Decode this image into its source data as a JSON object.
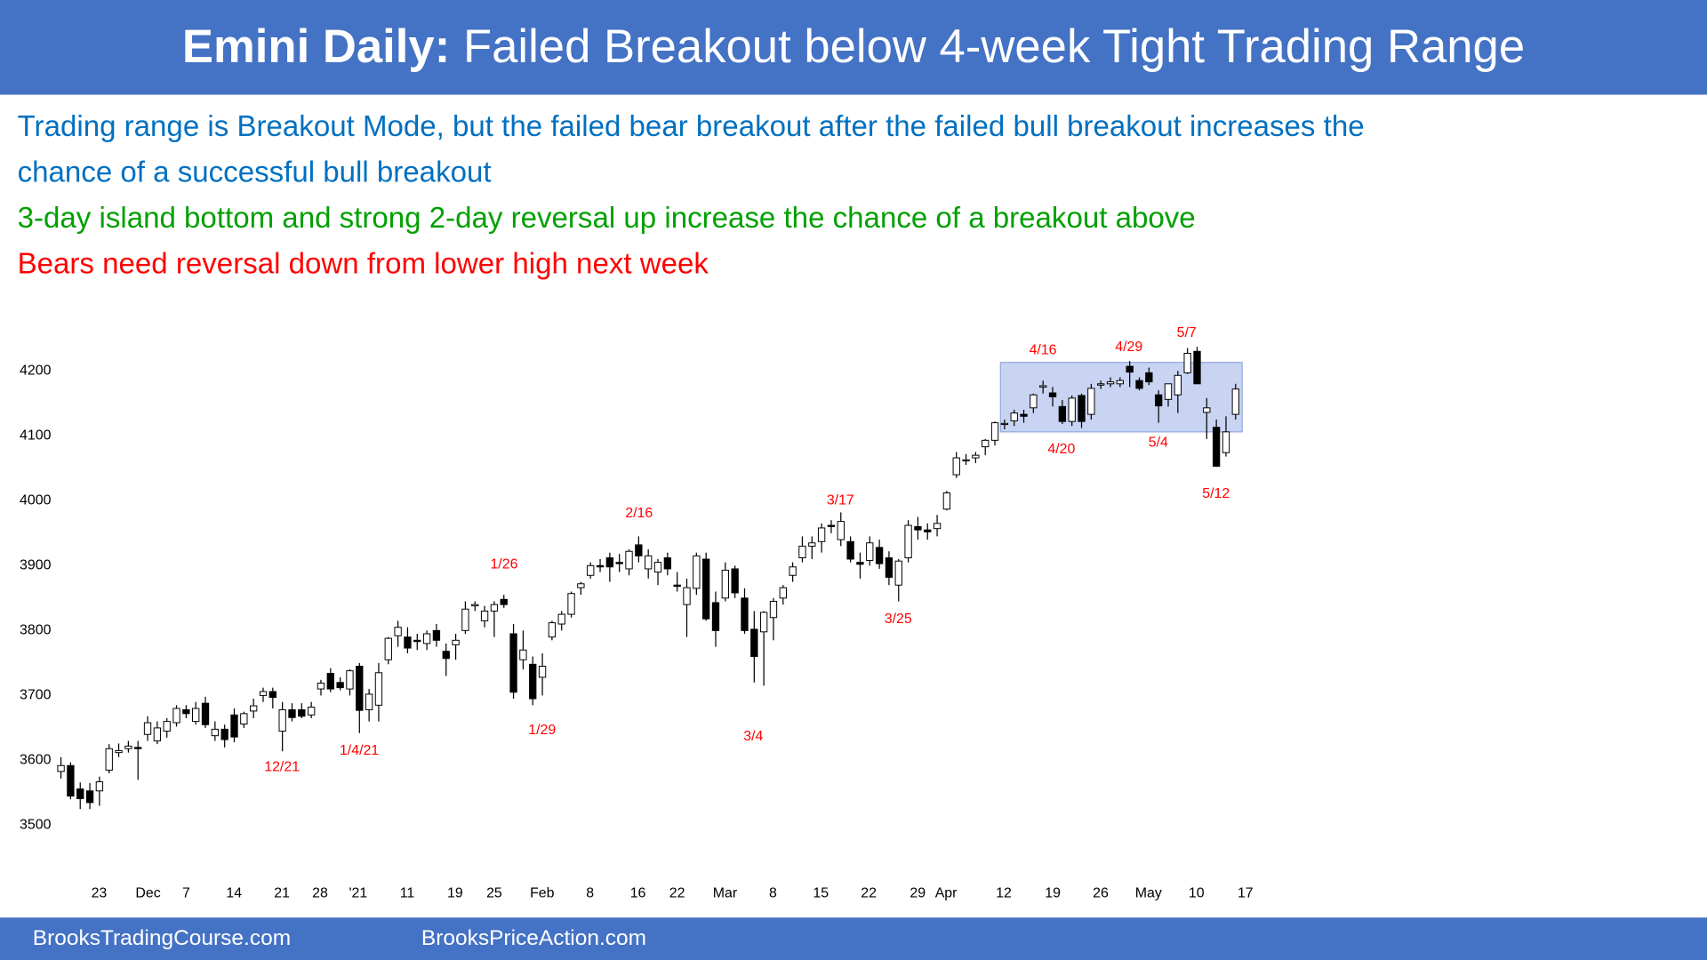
{
  "header": {
    "lead": "Emini Daily:",
    "title": "Failed Breakout below 4-week Tight Trading Range"
  },
  "notes": [
    {
      "text": "Trading range is Breakout Mode, but the failed bear breakout after the failed bull breakout increases the",
      "color": "#0070c0"
    },
    {
      "text": "chance of a successful bull breakout",
      "color": "#0070c0"
    },
    {
      "text": "3-day island bottom and strong 2-day reversal up increase the chance of a breakout above",
      "color": "#00a000"
    },
    {
      "text": "Bears need reversal down from lower high next week",
      "color": "#ff0000"
    }
  ],
  "chart_data": {
    "type": "candlestick",
    "open": [
      3583,
      3592,
      3556,
      3553,
      3553,
      3585,
      3612,
      3618,
      3620,
      3640,
      3630,
      3645,
      3658,
      3678,
      3660,
      3688,
      3638,
      3648,
      3670,
      3656,
      3676,
      3700,
      3706,
      3645,
      3678,
      3678,
      3670,
      3710,
      3734,
      3720,
      3710,
      3745,
      3678,
      3685,
      3755,
      3792,
      3790,
      3785,
      3780,
      3800,
      3768,
      3778,
      3800,
      3838,
      3815,
      3830,
      3848,
      3795,
      3755,
      3748,
      3728,
      3790,
      3810,
      3825,
      3866,
      3885,
      3900,
      3912,
      3905,
      3895,
      3932,
      3895,
      3890,
      3912,
      3870,
      3840,
      3865,
      3910,
      3843,
      3850,
      3895,
      3850,
      3802,
      3798,
      3820,
      3850,
      3885,
      3912,
      3930,
      3937,
      3962,
      3940,
      3937,
      3905,
      3908,
      3928,
      3912,
      3870,
      3912,
      3960,
      3955,
      3957,
      3987,
      4040,
      4062,
      4066,
      4083,
      4093,
      4118,
      4123,
      4133,
      4143,
      4175,
      4166,
      4145,
      4122,
      4162,
      4133,
      4178,
      4180,
      4180,
      4207,
      4185,
      4197,
      4163,
      4156,
      4163,
      4197,
      4230,
      4136,
      4113,
      4074,
      4133
    ],
    "high": [
      3605,
      3597,
      3566,
      3565,
      3575,
      3625,
      3626,
      3630,
      3630,
      3668,
      3660,
      3665,
      3685,
      3685,
      3690,
      3698,
      3660,
      3655,
      3680,
      3675,
      3695,
      3712,
      3712,
      3690,
      3688,
      3688,
      3690,
      3724,
      3742,
      3728,
      3740,
      3750,
      3710,
      3750,
      3790,
      3815,
      3805,
      3795,
      3800,
      3810,
      3780,
      3795,
      3845,
      3845,
      3838,
      3845,
      3855,
      3810,
      3800,
      3760,
      3765,
      3815,
      3830,
      3860,
      3875,
      3905,
      3910,
      3920,
      3918,
      3925,
      3945,
      3925,
      3910,
      3920,
      3890,
      3880,
      3920,
      3920,
      3860,
      3905,
      3900,
      3865,
      3830,
      3830,
      3850,
      3870,
      3905,
      3945,
      3945,
      3965,
      3970,
      3982,
      3945,
      3920,
      3945,
      3940,
      3922,
      3910,
      3970,
      3975,
      3965,
      3978,
      4015,
      4075,
      4072,
      4075,
      4095,
      4122,
      4125,
      4140,
      4140,
      4165,
      4185,
      4175,
      4155,
      4162,
      4165,
      4180,
      4185,
      4190,
      4190,
      4215,
      4190,
      4205,
      4170,
      4180,
      4200,
      4235,
      4237,
      4158,
      4125,
      4130,
      4180
    ],
    "low": [
      3572,
      3540,
      3525,
      3525,
      3530,
      3580,
      3605,
      3612,
      3570,
      3630,
      3625,
      3635,
      3652,
      3665,
      3655,
      3650,
      3630,
      3620,
      3628,
      3650,
      3665,
      3690,
      3680,
      3614,
      3660,
      3665,
      3665,
      3700,
      3705,
      3708,
      3700,
      3642,
      3660,
      3660,
      3748,
      3775,
      3765,
      3770,
      3770,
      3775,
      3730,
      3755,
      3795,
      3830,
      3805,
      3790,
      3835,
      3695,
      3740,
      3685,
      3700,
      3785,
      3800,
      3820,
      3855,
      3880,
      3890,
      3875,
      3890,
      3885,
      3905,
      3880,
      3870,
      3885,
      3860,
      3790,
      3855,
      3815,
      3775,
      3845,
      3850,
      3795,
      3720,
      3715,
      3785,
      3840,
      3875,
      3905,
      3910,
      3920,
      3950,
      3930,
      3905,
      3880,
      3900,
      3895,
      3870,
      3845,
      3905,
      3940,
      3940,
      3945,
      3985,
      4035,
      4055,
      4058,
      4070,
      4085,
      4110,
      4115,
      4120,
      4135,
      4165,
      4145,
      4118,
      4115,
      4112,
      4125,
      4172,
      4175,
      4175,
      4175,
      4170,
      4178,
      4120,
      4145,
      4135,
      4195,
      4180,
      4095,
      4052,
      4068,
      4125
    ],
    "close": [
      3592,
      3545,
      3541,
      3535,
      3567,
      3618,
      3615,
      3622,
      3618,
      3658,
      3650,
      3660,
      3680,
      3672,
      3680,
      3655,
      3648,
      3632,
      3636,
      3672,
      3684,
      3706,
      3697,
      3678,
      3666,
      3668,
      3682,
      3719,
      3710,
      3712,
      3738,
      3677,
      3702,
      3735,
      3788,
      3805,
      3773,
      3783,
      3795,
      3785,
      3757,
      3785,
      3833,
      3840,
      3830,
      3840,
      3840,
      3705,
      3770,
      3695,
      3745,
      3812,
      3825,
      3857,
      3872,
      3900,
      3898,
      3898,
      3903,
      3922,
      3915,
      3915,
      3905,
      3895,
      3868,
      3866,
      3915,
      3818,
      3800,
      3893,
      3858,
      3800,
      3760,
      3828,
      3845,
      3866,
      3898,
      3930,
      3935,
      3958,
      3960,
      3968,
      3910,
      3902,
      3935,
      3903,
      3882,
      3907,
      3962,
      3955,
      3952,
      3965,
      4012,
      4066,
      4063,
      4070,
      4093,
      4120,
      4119,
      4135,
      4130,
      4163,
      4177,
      4160,
      4122,
      4158,
      4122,
      4173,
      4180,
      4183,
      4185,
      4198,
      4173,
      4183,
      4146,
      4180,
      4193,
      4227,
      4180,
      4143,
      4053,
      4106,
      4172
    ],
    "up_color": "#ffffff",
    "down_color": "#000000",
    "ylim": [
      3430,
      4285
    ],
    "yticks": [
      3500,
      3600,
      3700,
      3800,
      3900,
      4000,
      4100,
      4200
    ],
    "x_labels": [
      "23",
      "Dec",
      "7",
      "14",
      "21",
      "28",
      "'21",
      "11",
      "19",
      "25",
      "Feb",
      "8",
      "16",
      "22",
      "Mar",
      "8",
      "15",
      "22",
      "29",
      "Apr",
      "12",
      "19",
      "26",
      "May",
      "10",
      "17"
    ],
    "annotations": [
      "12/21",
      "1/4/21",
      "1/26",
      "1/29",
      "2/16",
      "3/4",
      "3/17",
      "3/25",
      "4/16",
      "4/20",
      "4/29",
      "5/4",
      "5/7",
      "5/12"
    ],
    "annotation_color": "#ff0000",
    "range_box": {
      "low": 4106,
      "high": 4213,
      "color": "#c9d3f2"
    }
  },
  "footer": {
    "left": "BrooksTradingCourse.com",
    "right": "BrooksPriceAction.com"
  }
}
